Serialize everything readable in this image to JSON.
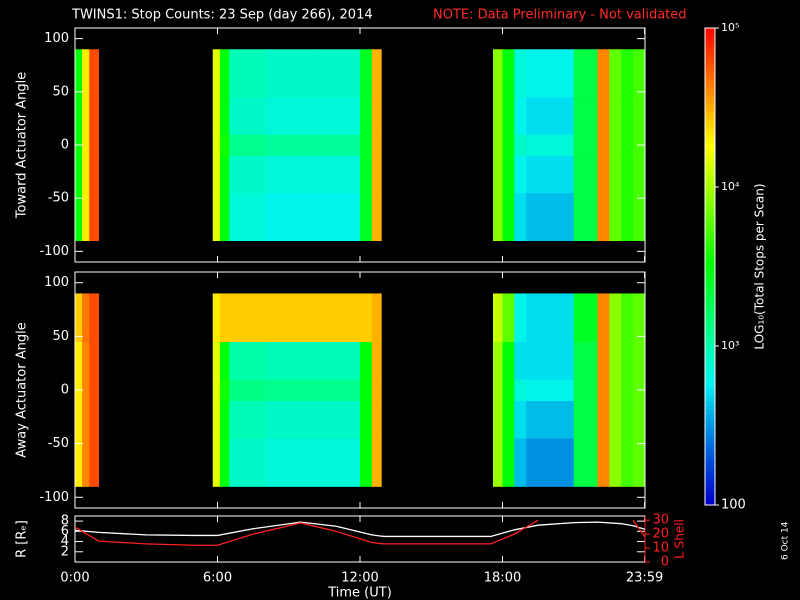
{
  "chart_data": [
    {
      "type": "heatmap",
      "title": "TWINS1: Stop Counts: 23 Sep (day 266), 2014",
      "note": "NOTE: Data Preliminary - Not validated",
      "ylabel": "Toward Actuator Angle",
      "xlim": [
        0,
        24
      ],
      "xticks": [
        0,
        6,
        12,
        18,
        23.983
      ],
      "ylim": [
        -110,
        110
      ],
      "yticks": [
        -100,
        -50,
        0,
        50,
        100
      ],
      "x_edges": [
        0,
        0.3,
        0.6,
        1.0,
        5.8,
        6.1,
        6.5,
        8,
        10,
        12,
        12.5,
        12.9,
        17.6,
        18,
        18.5,
        19,
        21,
        22,
        22.5,
        23,
        23.5,
        24
      ],
      "y_edges": [
        -90,
        -45,
        -10,
        10,
        45,
        90
      ],
      "values": [
        [
          3000,
          20000,
          60000,
          null,
          15000,
          3000,
          700,
          600,
          600,
          2500,
          30000,
          null,
          8000,
          3000,
          500,
          400,
          2000,
          40000,
          6000,
          4000,
          5000
        ],
        [
          3000,
          20000,
          60000,
          null,
          15000,
          3000,
          800,
          700,
          700,
          2500,
          30000,
          null,
          8000,
          3000,
          600,
          500,
          2000,
          40000,
          6000,
          4000,
          5000
        ],
        [
          3000,
          20000,
          60000,
          null,
          15000,
          3500,
          1200,
          1100,
          1100,
          2500,
          30000,
          null,
          8000,
          3000,
          800,
          700,
          2000,
          40000,
          6000,
          4000,
          5000
        ],
        [
          3000,
          20000,
          60000,
          null,
          15000,
          3000,
          800,
          700,
          700,
          2500,
          30000,
          null,
          8000,
          3000,
          600,
          500,
          2000,
          40000,
          6000,
          4000,
          5000
        ],
        [
          3000,
          20000,
          60000,
          null,
          15000,
          3000,
          900,
          800,
          800,
          2500,
          30000,
          null,
          8000,
          3000,
          700,
          600,
          2000,
          40000,
          6000,
          4000,
          5000
        ]
      ]
    },
    {
      "type": "heatmap",
      "ylabel": "Away Actuator Angle",
      "xlim": [
        0,
        24
      ],
      "xticks": [
        0,
        6,
        12,
        18,
        23.983
      ],
      "ylim": [
        -110,
        110
      ],
      "yticks": [
        -100,
        -50,
        0,
        50,
        100
      ],
      "x_edges": [
        0,
        0.3,
        0.6,
        1.0,
        5.8,
        6.1,
        6.5,
        8,
        10,
        12,
        12.5,
        12.9,
        17.6,
        18,
        18.5,
        19,
        21,
        22,
        22.5,
        23,
        23.5,
        24
      ],
      "y_edges": [
        -90,
        -45,
        -10,
        10,
        45,
        90
      ],
      "values": [
        [
          20000,
          40000,
          60000,
          null,
          15000,
          3000,
          800,
          700,
          700,
          3000,
          30000,
          null,
          9000,
          3000,
          400,
          300,
          2000,
          40000,
          8000,
          5000,
          6000
        ],
        [
          20000,
          40000,
          60000,
          null,
          15000,
          3000,
          900,
          800,
          800,
          3000,
          30000,
          null,
          9000,
          3000,
          500,
          400,
          2000,
          40000,
          8000,
          5000,
          6000
        ],
        [
          20000,
          40000,
          60000,
          null,
          15000,
          3500,
          1300,
          1200,
          1200,
          3000,
          30000,
          null,
          9000,
          3000,
          700,
          600,
          2000,
          40000,
          8000,
          5000,
          6000
        ],
        [
          20000,
          40000,
          60000,
          null,
          15000,
          3000,
          1000,
          900,
          900,
          3000,
          30000,
          null,
          9000,
          3000,
          500,
          500,
          2000,
          40000,
          8000,
          5000,
          6000
        ],
        [
          25000,
          45000,
          60000,
          null,
          20000,
          25000,
          25000,
          25000,
          25000,
          25000,
          30000,
          null,
          12000,
          6000,
          600,
          500,
          2500,
          40000,
          8000,
          5000,
          6000
        ]
      ]
    },
    {
      "type": "line",
      "xlabel": "Time (UT)",
      "ylabel": "R [Rₑ]",
      "y2label": "L Shell",
      "xlim": [
        0,
        24
      ],
      "xticks": [
        {
          "value": 0,
          "label": "0:00"
        },
        {
          "value": 6,
          "label": "6:00"
        },
        {
          "value": 12,
          "label": "12:00"
        },
        {
          "value": 18,
          "label": "18:00"
        },
        {
          "value": 23.983,
          "label": "23:59"
        }
      ],
      "ylim": [
        0,
        9
      ],
      "yticks": [
        2,
        4,
        6,
        8
      ],
      "y2lim": [
        0,
        33
      ],
      "y2ticks": [
        0,
        10,
        20,
        30
      ],
      "x": [
        0,
        1,
        3,
        5,
        6,
        7.5,
        9.5,
        11,
        12.5,
        13,
        15,
        17.5,
        18.5,
        19.5,
        21,
        22,
        23,
        23.5,
        24
      ],
      "series": [
        {
          "color": "#ffffff",
          "values": [
            6.2,
            5.8,
            5.3,
            5.2,
            5.2,
            6.5,
            7.8,
            7.0,
            5.3,
            5.0,
            5.0,
            5.0,
            6.3,
            7.2,
            7.7,
            7.8,
            7.5,
            7.1,
            6.4
          ]
        },
        {
          "color": "#ff2020",
          "axis": "y2",
          "values": [
            25,
            15,
            13,
            12,
            12,
            20,
            28,
            22,
            14,
            13,
            13,
            13,
            20,
            30,
            null,
            null,
            null,
            30,
            18
          ]
        }
      ]
    },
    {
      "type": "colorbar",
      "label": "LOG₁₀(Total Stops per Scan)",
      "zlim": [
        100,
        100000
      ],
      "zticks": [
        100,
        {
          "value": 1000,
          "label": "10³"
        },
        {
          "value": 10000,
          "label": "10⁴"
        },
        {
          "value": 100000,
          "label": "10⁵"
        }
      ]
    }
  ],
  "footer": "6 Oct 14"
}
